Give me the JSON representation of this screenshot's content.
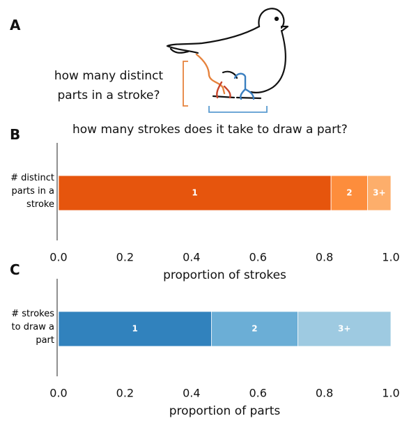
{
  "figure": {
    "panels": [
      "A",
      "B",
      "C"
    ],
    "annotations": [
      "how many distinct parts in a stroke?",
      "how many strokes does it take to draw a part?"
    ]
  },
  "chart_data": [
    {
      "type": "stacked-bar",
      "categories": [
        "# distinct parts in a stroke"
      ],
      "xlabel": "proportion of strokes",
      "xlim": [
        0,
        1
      ],
      "xticks": [
        {
          "value": 0,
          "label": "0.0"
        },
        {
          "value": 0.2,
          "label": "0.2"
        },
        {
          "value": 0.4,
          "label": "0.4"
        },
        {
          "value": 0.6,
          "label": "0.6"
        },
        {
          "value": 0.8,
          "label": "0.8"
        },
        {
          "value": 1,
          "label": "1.0"
        }
      ],
      "series": [
        {
          "name": "1",
          "color": "#e6550d",
          "values": [
            0.82
          ]
        },
        {
          "name": "2",
          "color": "#fd8d3c",
          "values": [
            0.11
          ]
        },
        {
          "name": "3+",
          "color": "#fdae6b",
          "values": [
            0.07
          ]
        }
      ]
    },
    {
      "type": "stacked-bar",
      "categories": [
        "# strokes to draw a part"
      ],
      "xlabel": "proportion of parts",
      "xlim": [
        0,
        1
      ],
      "xticks": [
        {
          "value": 0,
          "label": "0.0"
        },
        {
          "value": 0.2,
          "label": "0.2"
        },
        {
          "value": 0.4,
          "label": "0.4"
        },
        {
          "value": 0.6,
          "label": "0.6"
        },
        {
          "value": 0.8,
          "label": "0.8"
        },
        {
          "value": 1,
          "label": "1.0"
        }
      ],
      "series": [
        {
          "name": "1",
          "color": "#3182bd",
          "values": [
            0.46
          ]
        },
        {
          "name": "2",
          "color": "#6baed6",
          "values": [
            0.26
          ]
        },
        {
          "name": "3+",
          "color": "#9ecae1",
          "values": [
            0.28
          ]
        }
      ]
    }
  ]
}
